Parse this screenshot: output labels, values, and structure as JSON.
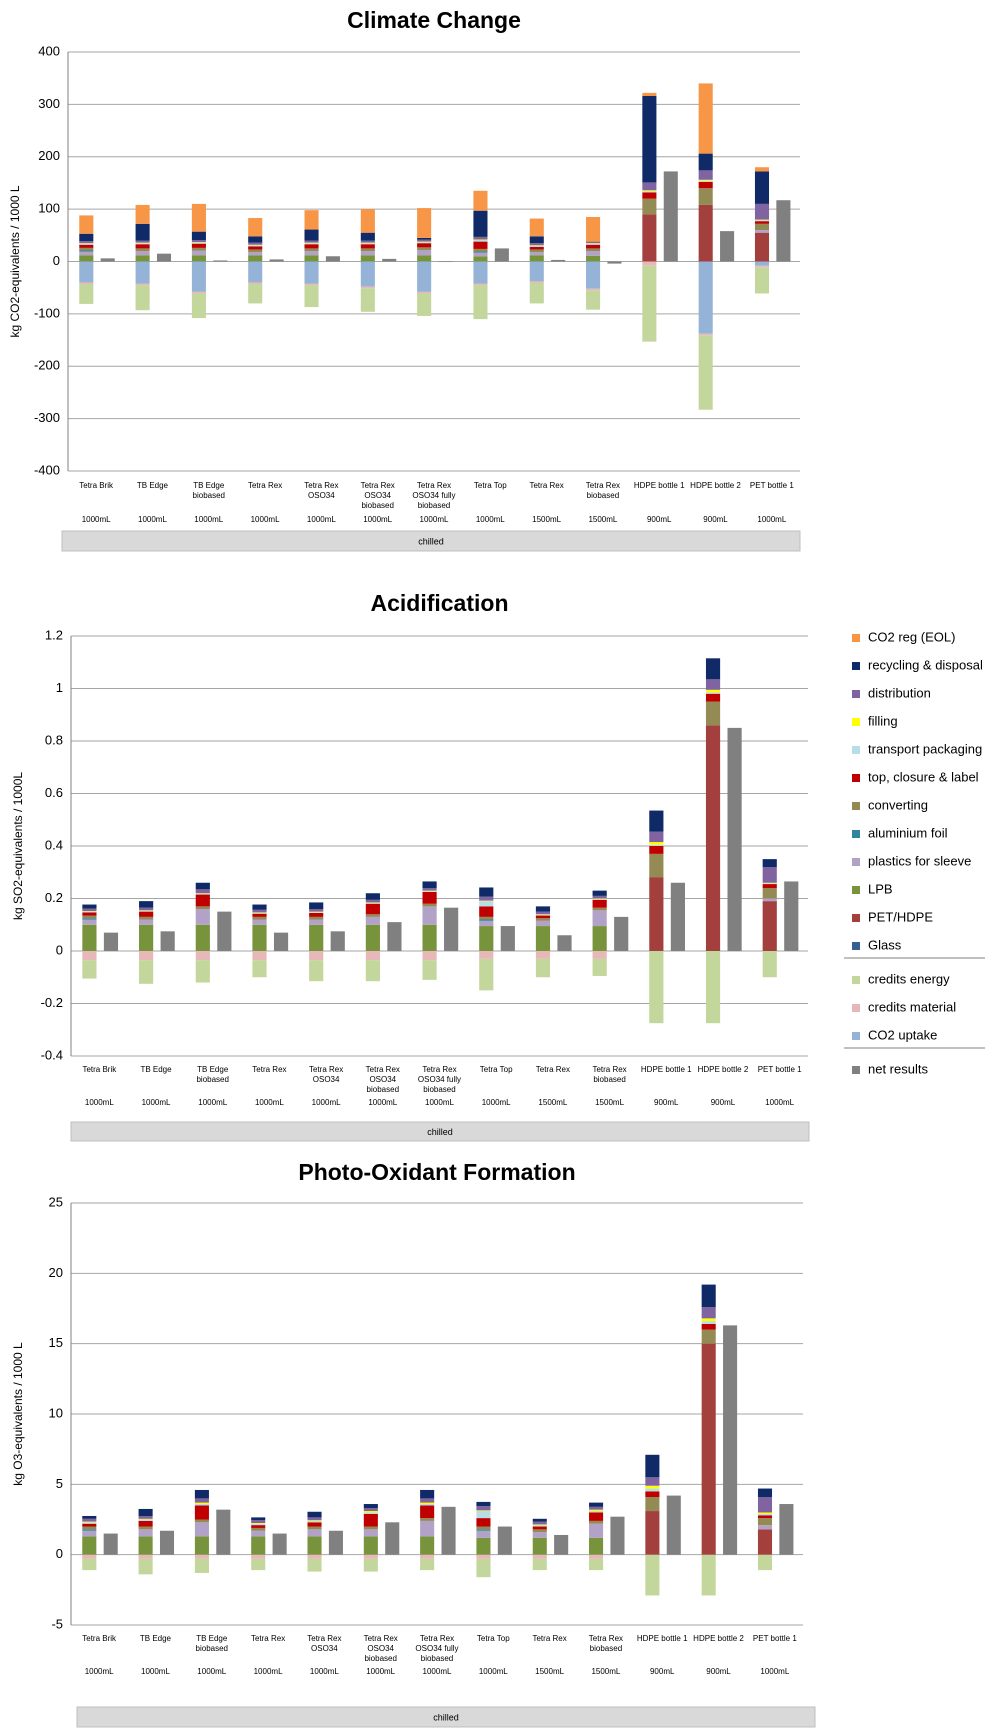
{
  "chart_data": [
    {
      "type": "stacked_bar",
      "title": "Climate Change",
      "ylabel": "kg CO2-equivalents / 1000 L",
      "categories": [
        "Tetra Brik",
        "TB Edge",
        "TB Edge biobased",
        "Tetra Rex",
        "Tetra Rex OSO34",
        "Tetra Rex OSO34 biobased",
        "Tetra Rex OSO34 fully biobased",
        "Tetra Top",
        "Tetra Rex",
        "Tetra Rex biobased",
        "HDPE bottle 1",
        "HDPE bottle 2",
        "PET bottle 1"
      ],
      "sizes": [
        "1000mL",
        "1000mL",
        "1000mL",
        "1000mL",
        "1000mL",
        "1000mL",
        "1000mL",
        "1000mL",
        "1500mL",
        "1500mL",
        "900mL",
        "900mL",
        "1000mL"
      ],
      "group_label": "chilled",
      "ylim": [
        -400,
        400
      ],
      "yticks": [
        -400,
        -300,
        -200,
        -100,
        0,
        100,
        200,
        300,
        400
      ],
      "grid": true,
      "legend": false,
      "series": [
        {
          "name": "CO2 reg (EOL)",
          "color": "#f79646",
          "values": [
            35,
            36,
            53,
            35,
            37,
            45,
            57,
            38,
            34,
            47,
            6,
            134,
            8
          ]
        },
        {
          "name": "recycling & disposal",
          "color": "#0f2a66",
          "values": [
            14,
            32,
            16,
            12,
            21,
            15,
            3,
            50,
            13,
            0,
            165,
            32,
            62
          ]
        },
        {
          "name": "distribution",
          "color": "#8064a2",
          "values": [
            4,
            4,
            4,
            4,
            4,
            4,
            4,
            5,
            4,
            3,
            15,
            18,
            30
          ]
        },
        {
          "name": "filling",
          "color": "#ffff00",
          "values": [
            1,
            1,
            1,
            1,
            1,
            1,
            1,
            1,
            1,
            1,
            2,
            2,
            1
          ]
        },
        {
          "name": "transport packaging",
          "color": "#b7dde8",
          "values": [
            2,
            2,
            2,
            2,
            2,
            2,
            2,
            3,
            2,
            2,
            2,
            2,
            2
          ]
        },
        {
          "name": "top, closure & label",
          "color": "#c00000",
          "values": [
            6,
            8,
            8,
            6,
            8,
            8,
            8,
            14,
            5,
            7,
            12,
            12,
            5
          ]
        },
        {
          "name": "converting",
          "color": "#948a54",
          "values": [
            5,
            5,
            5,
            5,
            5,
            5,
            5,
            5,
            5,
            5,
            30,
            32,
            12
          ]
        },
        {
          "name": "aluminium foil",
          "color": "#31859c",
          "values": [
            2,
            0,
            0,
            0,
            0,
            0,
            0,
            2,
            0,
            0,
            0,
            0,
            0
          ]
        },
        {
          "name": "plastics for sleeve",
          "color": "#b3a2c7",
          "values": [
            7,
            8,
            9,
            6,
            8,
            8,
            10,
            7,
            6,
            9,
            0,
            0,
            5
          ]
        },
        {
          "name": "LPB",
          "color": "#77933c",
          "values": [
            12,
            12,
            12,
            12,
            12,
            12,
            12,
            10,
            12,
            11,
            0,
            0,
            0
          ]
        },
        {
          "name": "PET/HDPE",
          "color": "#a33f3d",
          "values": [
            0,
            0,
            0,
            0,
            0,
            0,
            0,
            0,
            0,
            0,
            90,
            108,
            55
          ]
        },
        {
          "name": "Glass",
          "color": "#376092",
          "values": [
            0,
            0,
            0,
            0,
            0,
            0,
            0,
            0,
            0,
            0,
            0,
            0,
            0
          ]
        },
        {
          "name": "credits energy",
          "color": "#c3d69b",
          "values": [
            -38,
            -48,
            -47,
            -37,
            -42,
            -45,
            -43,
            -65,
            -39,
            -37,
            -145,
            -142,
            -50
          ]
        },
        {
          "name": "credits material",
          "color": "#e6b9b8",
          "values": [
            -3,
            -3,
            -3,
            -3,
            -3,
            -3,
            -3,
            -3,
            -3,
            -3,
            -8,
            -3,
            -3
          ]
        },
        {
          "name": "CO2 uptake",
          "color": "#95b3d7",
          "values": [
            -40,
            -42,
            -58,
            -40,
            -42,
            -48,
            -58,
            -42,
            -38,
            -52,
            0,
            -138,
            -8
          ]
        }
      ],
      "net": {
        "name": "net results",
        "color": "#808080",
        "values": [
          6,
          15,
          2,
          4,
          10,
          5,
          -1,
          25,
          3,
          -4,
          172,
          58,
          117
        ]
      }
    },
    {
      "type": "stacked_bar",
      "title": "Acidification",
      "ylabel": "kg SO2-equivalents / 1000L",
      "categories": [
        "Tetra Brik",
        "TB Edge",
        "TB Edge biobased",
        "Tetra Rex",
        "Tetra Rex OSO34",
        "Tetra Rex OSO34 biobased",
        "Tetra Rex OSO34 fully biobased",
        "Tetra Top",
        "Tetra Rex",
        "Tetra Rex biobased",
        "HDPE bottle 1",
        "HDPE bottle 2",
        "PET bottle 1"
      ],
      "sizes": [
        "1000mL",
        "1000mL",
        "1000mL",
        "1000mL",
        "1000mL",
        "1000mL",
        "1000mL",
        "1000mL",
        "1500mL",
        "1500mL",
        "900mL",
        "900mL",
        "1000mL"
      ],
      "group_label": "chilled",
      "ylim": [
        -0.4,
        1.2
      ],
      "yticks": [
        -0.4,
        -0.2,
        0,
        0.2,
        0.4,
        0.6,
        0.8,
        1,
        1.2
      ],
      "grid": true,
      "legend": true,
      "series": [
        {
          "name": "CO2 reg (EOL)",
          "color": "#f79646",
          "values": [
            0,
            0,
            0,
            0,
            0,
            0,
            0,
            0,
            0,
            0,
            0,
            0,
            0
          ]
        },
        {
          "name": "recycling & disposal",
          "color": "#0f2a66",
          "values": [
            0.015,
            0.025,
            0.025,
            0.02,
            0.025,
            0.025,
            0.025,
            0.035,
            0.02,
            0.02,
            0.08,
            0.08,
            0.03
          ]
        },
        {
          "name": "distribution",
          "color": "#8064a2",
          "values": [
            0.01,
            0.01,
            0.015,
            0.01,
            0.01,
            0.01,
            0.01,
            0.015,
            0.01,
            0.01,
            0.04,
            0.04,
            0.06
          ]
        },
        {
          "name": "filling",
          "color": "#ffff00",
          "values": [
            0.002,
            0.002,
            0.002,
            0.002,
            0.002,
            0.002,
            0.002,
            0.002,
            0.002,
            0.002,
            0.01,
            0.01,
            0.002
          ]
        },
        {
          "name": "transport packaging",
          "color": "#b7dde8",
          "values": [
            0.003,
            0.003,
            0.003,
            0.003,
            0.003,
            0.003,
            0.003,
            0.02,
            0.003,
            0.003,
            0.005,
            0.005,
            0.003
          ]
        },
        {
          "name": "top, closure & label",
          "color": "#c00000",
          "values": [
            0.012,
            0.02,
            0.045,
            0.012,
            0.015,
            0.04,
            0.045,
            0.04,
            0.01,
            0.03,
            0.03,
            0.03,
            0.015
          ]
        },
        {
          "name": "converting",
          "color": "#948a54",
          "values": [
            0.01,
            0.01,
            0.01,
            0.01,
            0.01,
            0.01,
            0.01,
            0.01,
            0.01,
            0.01,
            0.09,
            0.09,
            0.04
          ]
        },
        {
          "name": "aluminium foil",
          "color": "#31859c",
          "values": [
            0.005,
            0,
            0,
            0,
            0,
            0,
            0,
            0.005,
            0,
            0,
            0,
            0,
            0
          ]
        },
        {
          "name": "plastics for sleeve",
          "color": "#b3a2c7",
          "values": [
            0.02,
            0.02,
            0.06,
            0.02,
            0.02,
            0.03,
            0.07,
            0.02,
            0.02,
            0.06,
            0,
            0,
            0.01
          ]
        },
        {
          "name": "LPB",
          "color": "#77933c",
          "values": [
            0.1,
            0.1,
            0.1,
            0.1,
            0.1,
            0.1,
            0.1,
            0.095,
            0.095,
            0.095,
            0,
            0,
            0
          ]
        },
        {
          "name": "PET/HDPE",
          "color": "#a33f3d",
          "values": [
            0,
            0,
            0,
            0,
            0,
            0,
            0,
            0,
            0,
            0,
            0.28,
            0.86,
            0.19
          ]
        },
        {
          "name": "Glass",
          "color": "#376092",
          "values": [
            0,
            0,
            0,
            0,
            0,
            0,
            0,
            0,
            0,
            0,
            0,
            0,
            0
          ]
        },
        {
          "name": "credits energy",
          "color": "#c3d69b",
          "values": [
            -0.07,
            -0.09,
            -0.085,
            -0.065,
            -0.08,
            -0.08,
            -0.075,
            -0.12,
            -0.07,
            -0.065,
            -0.275,
            -0.275,
            -0.1
          ]
        },
        {
          "name": "credits material",
          "color": "#e6b9b8",
          "values": [
            -0.035,
            -0.035,
            -0.035,
            -0.035,
            -0.035,
            -0.035,
            -0.035,
            -0.03,
            -0.03,
            -0.03,
            0,
            0,
            0
          ]
        },
        {
          "name": "CO2 uptake",
          "color": "#95b3d7",
          "values": [
            0,
            0,
            0,
            0,
            0,
            0,
            0,
            0,
            0,
            0,
            0,
            0,
            0
          ]
        }
      ],
      "net": {
        "name": "net results",
        "color": "#808080",
        "values": [
          0.07,
          0.075,
          0.15,
          0.07,
          0.075,
          0.11,
          0.165,
          0.095,
          0.06,
          0.13,
          0.26,
          0.85,
          0.265
        ]
      }
    },
    {
      "type": "stacked_bar",
      "title": "Photo-Oxidant Formation",
      "ylabel": "kg O3-equivalents / 1000 L",
      "categories": [
        "Tetra Brik",
        "TB Edge",
        "TB Edge biobased",
        "Tetra Rex",
        "Tetra Rex OSO34",
        "Tetra Rex OSO34 biobased",
        "Tetra Rex OSO34 fully biobased",
        "Tetra Top",
        "Tetra Rex",
        "Tetra Rex biobased",
        "HDPE bottle 1",
        "HDPE bottle 2",
        "PET bottle 1"
      ],
      "sizes": [
        "1000mL",
        "1000mL",
        "1000mL",
        "1000mL",
        "1000mL",
        "1000mL",
        "1000mL",
        "1000mL",
        "1500mL",
        "1500mL",
        "900mL",
        "900mL",
        "1000mL"
      ],
      "group_label": "chilled",
      "ylim": [
        -5,
        25
      ],
      "yticks": [
        -5,
        0,
        5,
        10,
        15,
        20,
        25
      ],
      "grid": true,
      "legend": false,
      "series": [
        {
          "name": "CO2 reg (EOL)",
          "color": "#f79646",
          "values": [
            0,
            0,
            0,
            0,
            0,
            0,
            0,
            0,
            0,
            0,
            0,
            0,
            0
          ]
        },
        {
          "name": "recycling & disposal",
          "color": "#0f2a66",
          "values": [
            0.2,
            0.5,
            0.6,
            0.2,
            0.4,
            0.3,
            0.6,
            0.3,
            0.2,
            0.3,
            1.6,
            1.6,
            0.6
          ]
        },
        {
          "name": "distribution",
          "color": "#8064a2",
          "values": [
            0.2,
            0.2,
            0.3,
            0.2,
            0.2,
            0.2,
            0.3,
            0.3,
            0.2,
            0.2,
            0.6,
            0.8,
            1.1
          ]
        },
        {
          "name": "filling",
          "color": "#ffff00",
          "values": [
            0.05,
            0.05,
            0.1,
            0.05,
            0.05,
            0.1,
            0.1,
            0.05,
            0.05,
            0.1,
            0.2,
            0.2,
            0.1
          ]
        },
        {
          "name": "transport packaging",
          "color": "#b7dde8",
          "values": [
            0.1,
            0.1,
            0.1,
            0.1,
            0.1,
            0.1,
            0.1,
            0.5,
            0.1,
            0.1,
            0.2,
            0.2,
            0.1
          ]
        },
        {
          "name": "top, closure & label",
          "color": "#c00000",
          "values": [
            0.2,
            0.4,
            1.0,
            0.2,
            0.3,
            0.9,
            0.9,
            0.6,
            0.2,
            0.6,
            0.4,
            0.4,
            0.2
          ]
        },
        {
          "name": "converting",
          "color": "#948a54",
          "values": [
            0.2,
            0.2,
            0.2,
            0.2,
            0.2,
            0.2,
            0.2,
            0.2,
            0.2,
            0.2,
            1.0,
            1.0,
            0.5
          ]
        },
        {
          "name": "aluminium foil",
          "color": "#31859c",
          "values": [
            0.1,
            0,
            0,
            0,
            0,
            0,
            0,
            0.1,
            0,
            0,
            0,
            0,
            0
          ]
        },
        {
          "name": "plastics for sleeve",
          "color": "#b3a2c7",
          "values": [
            0.4,
            0.5,
            1.0,
            0.4,
            0.5,
            0.5,
            1.1,
            0.5,
            0.4,
            1.0,
            0,
            0,
            0.3
          ]
        },
        {
          "name": "LPB",
          "color": "#77933c",
          "values": [
            1.3,
            1.3,
            1.3,
            1.3,
            1.3,
            1.3,
            1.3,
            1.2,
            1.2,
            1.2,
            0,
            0,
            0
          ]
        },
        {
          "name": "PET/HDPE",
          "color": "#a33f3d",
          "values": [
            0,
            0,
            0,
            0,
            0,
            0,
            0,
            0,
            0,
            0,
            3.1,
            15.0,
            1.8
          ]
        },
        {
          "name": "Glass",
          "color": "#376092",
          "values": [
            0,
            0,
            0,
            0,
            0,
            0,
            0,
            0,
            0,
            0,
            0,
            0,
            0
          ]
        },
        {
          "name": "credits energy",
          "color": "#c3d69b",
          "values": [
            -0.8,
            -1.1,
            -1.0,
            -0.8,
            -0.9,
            -0.9,
            -0.8,
            -1.3,
            -0.8,
            -0.8,
            -2.9,
            -2.9,
            -1.1
          ]
        },
        {
          "name": "credits material",
          "color": "#e6b9b8",
          "values": [
            -0.3,
            -0.3,
            -0.3,
            -0.3,
            -0.3,
            -0.3,
            -0.3,
            -0.3,
            -0.3,
            -0.3,
            0,
            0,
            0
          ]
        },
        {
          "name": "CO2 uptake",
          "color": "#95b3d7",
          "values": [
            0,
            0,
            0,
            0,
            0,
            0,
            0,
            0,
            0,
            0,
            0,
            0,
            0
          ]
        }
      ],
      "net": {
        "name": "net results",
        "color": "#808080",
        "values": [
          1.5,
          1.7,
          3.2,
          1.5,
          1.7,
          2.3,
          3.4,
          2.0,
          1.4,
          2.7,
          4.2,
          16.3,
          3.6
        ]
      }
    }
  ]
}
